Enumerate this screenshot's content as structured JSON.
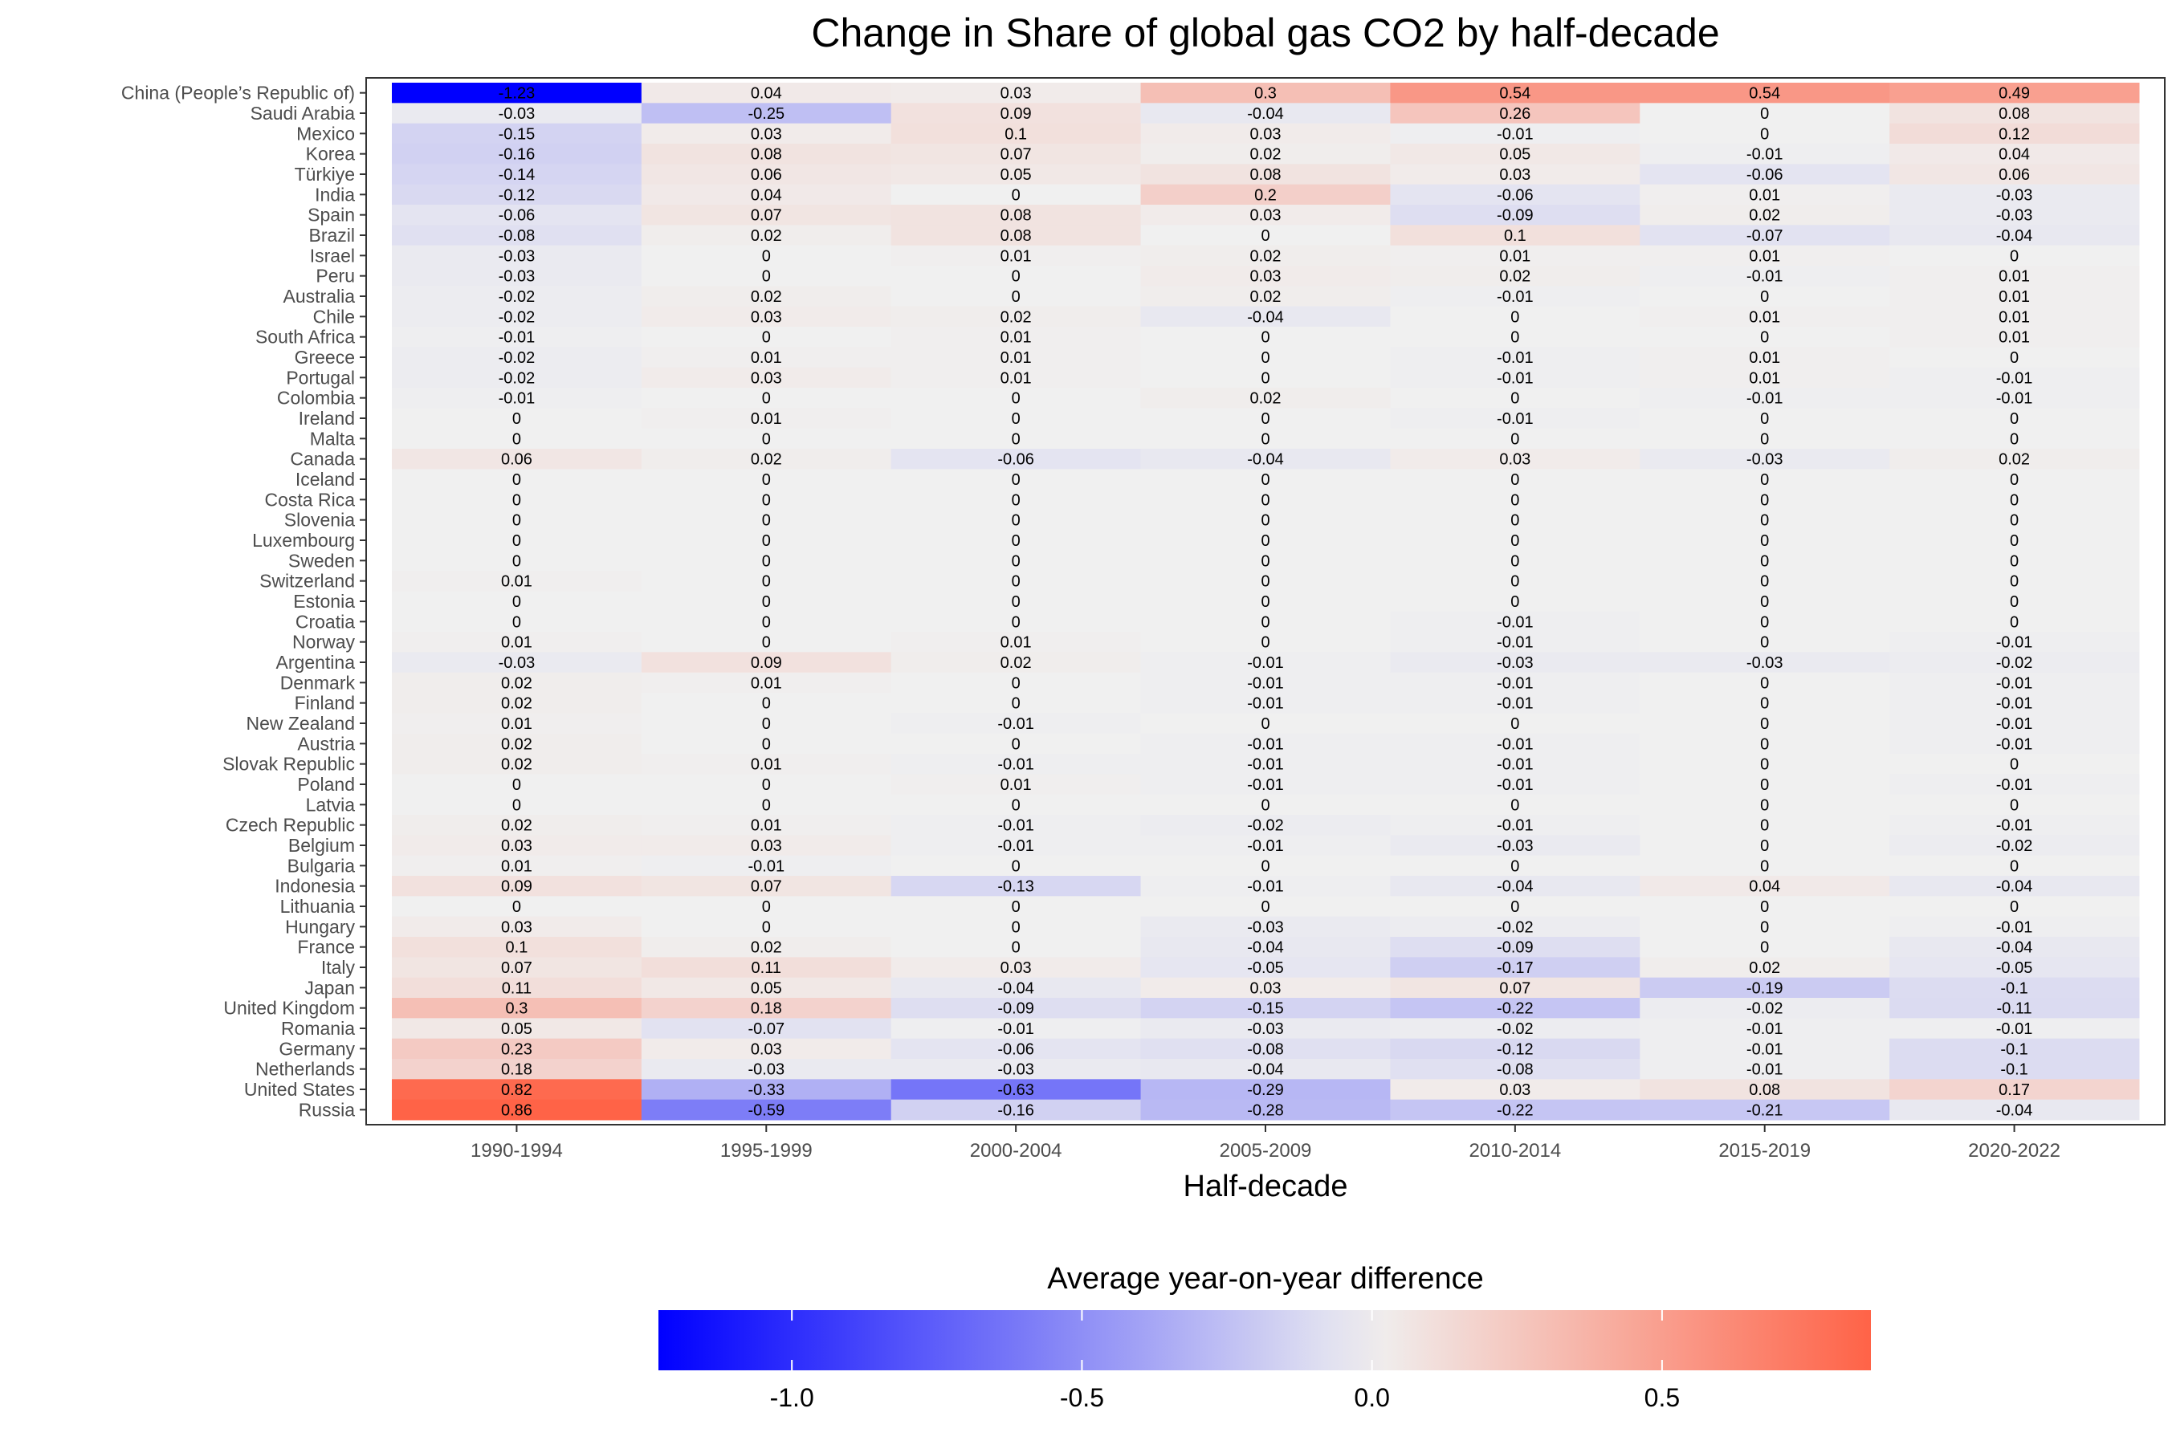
{
  "chart_data": {
    "type": "heatmap",
    "title": "Change in Share of global gas CO2 by half-decade",
    "xlabel": "Half-decade",
    "ylabel": "",
    "x_categories": [
      "1990-1994",
      "1995-1999",
      "2000-2004",
      "2005-2009",
      "2010-2014",
      "2015-2019",
      "2020-2022"
    ],
    "rows": [
      {
        "country": "China (People’s Republic of)",
        "values": [
          -1.23,
          0.04,
          0.03,
          0.3,
          0.54,
          0.54,
          0.49
        ]
      },
      {
        "country": "Saudi Arabia",
        "values": [
          -0.03,
          -0.25,
          0.09,
          -0.04,
          0.26,
          0,
          0.08
        ]
      },
      {
        "country": "Mexico",
        "values": [
          -0.15,
          0.03,
          0.1,
          0.03,
          -0.01,
          0,
          0.12
        ]
      },
      {
        "country": "Korea",
        "values": [
          -0.16,
          0.08,
          0.07,
          0.02,
          0.05,
          -0.01,
          0.04
        ]
      },
      {
        "country": "Türkiye",
        "values": [
          -0.14,
          0.06,
          0.05,
          0.08,
          0.03,
          -0.06,
          0.06
        ]
      },
      {
        "country": "India",
        "values": [
          -0.12,
          0.04,
          0,
          0.2,
          -0.06,
          0.01,
          -0.03
        ]
      },
      {
        "country": "Spain",
        "values": [
          -0.06,
          0.07,
          0.08,
          0.03,
          -0.09,
          0.02,
          -0.03
        ]
      },
      {
        "country": "Brazil",
        "values": [
          -0.08,
          0.02,
          0.08,
          0,
          0.1,
          -0.07,
          -0.04
        ]
      },
      {
        "country": "Israel",
        "values": [
          -0.03,
          0,
          0.01,
          0.02,
          0.01,
          0.01,
          0
        ]
      },
      {
        "country": "Peru",
        "values": [
          -0.03,
          0,
          0,
          0.03,
          0.02,
          -0.01,
          0.01
        ]
      },
      {
        "country": "Australia",
        "values": [
          -0.02,
          0.02,
          0,
          0.02,
          -0.01,
          0,
          0.01
        ]
      },
      {
        "country": "Chile",
        "values": [
          -0.02,
          0.03,
          0.02,
          -0.04,
          0,
          0.01,
          0.01
        ]
      },
      {
        "country": "South Africa",
        "values": [
          -0.01,
          0,
          0.01,
          0,
          0,
          0,
          0.01
        ]
      },
      {
        "country": "Greece",
        "values": [
          -0.02,
          0.01,
          0.01,
          0,
          -0.01,
          0.01,
          0
        ]
      },
      {
        "country": "Portugal",
        "values": [
          -0.02,
          0.03,
          0.01,
          0,
          -0.01,
          0.01,
          -0.01
        ]
      },
      {
        "country": "Colombia",
        "values": [
          -0.01,
          0,
          0,
          0.02,
          0,
          -0.01,
          -0.01
        ]
      },
      {
        "country": "Ireland",
        "values": [
          0,
          0.01,
          0,
          0,
          -0.01,
          0,
          0
        ]
      },
      {
        "country": "Malta",
        "values": [
          0,
          0,
          0,
          0,
          0,
          0,
          0
        ]
      },
      {
        "country": "Canada",
        "values": [
          0.06,
          0.02,
          -0.06,
          -0.04,
          0.03,
          -0.03,
          0.02
        ]
      },
      {
        "country": "Iceland",
        "values": [
          0,
          0,
          0,
          0,
          0,
          0,
          0
        ]
      },
      {
        "country": "Costa Rica",
        "values": [
          0,
          0,
          0,
          0,
          0,
          0,
          0
        ]
      },
      {
        "country": "Slovenia",
        "values": [
          0,
          0,
          0,
          0,
          0,
          0,
          0
        ]
      },
      {
        "country": "Luxembourg",
        "values": [
          0,
          0,
          0,
          0,
          0,
          0,
          0
        ]
      },
      {
        "country": "Sweden",
        "values": [
          0,
          0,
          0,
          0,
          0,
          0,
          0
        ]
      },
      {
        "country": "Switzerland",
        "values": [
          0.01,
          0,
          0,
          0,
          0,
          0,
          0
        ]
      },
      {
        "country": "Estonia",
        "values": [
          0,
          0,
          0,
          0,
          0,
          0,
          0
        ]
      },
      {
        "country": "Croatia",
        "values": [
          0,
          0,
          0,
          0,
          -0.01,
          0,
          0
        ]
      },
      {
        "country": "Norway",
        "values": [
          0.01,
          0,
          0.01,
          0,
          -0.01,
          0,
          -0.01
        ]
      },
      {
        "country": "Argentina",
        "values": [
          -0.03,
          0.09,
          0.02,
          -0.01,
          -0.03,
          -0.03,
          -0.02
        ]
      },
      {
        "country": "Denmark",
        "values": [
          0.02,
          0.01,
          0,
          -0.01,
          -0.01,
          0,
          -0.01
        ]
      },
      {
        "country": "Finland",
        "values": [
          0.02,
          0,
          0,
          -0.01,
          -0.01,
          0,
          -0.01
        ]
      },
      {
        "country": "New Zealand",
        "values": [
          0.01,
          0,
          -0.01,
          0,
          0,
          0,
          -0.01
        ]
      },
      {
        "country": "Austria",
        "values": [
          0.02,
          0,
          0,
          -0.01,
          -0.01,
          0,
          -0.01
        ]
      },
      {
        "country": "Slovak Republic",
        "values": [
          0.02,
          0.01,
          -0.01,
          -0.01,
          -0.01,
          0,
          0
        ]
      },
      {
        "country": "Poland",
        "values": [
          0,
          0,
          0.01,
          -0.01,
          -0.01,
          0,
          -0.01
        ]
      },
      {
        "country": "Latvia",
        "values": [
          0,
          0,
          0,
          0,
          0,
          0,
          0
        ]
      },
      {
        "country": "Czech Republic",
        "values": [
          0.02,
          0.01,
          -0.01,
          -0.02,
          -0.01,
          0,
          -0.01
        ]
      },
      {
        "country": "Belgium",
        "values": [
          0.03,
          0.03,
          -0.01,
          -0.01,
          -0.03,
          0,
          -0.02
        ]
      },
      {
        "country": "Bulgaria",
        "values": [
          0.01,
          -0.01,
          0,
          0,
          0,
          0,
          0
        ]
      },
      {
        "country": "Indonesia",
        "values": [
          0.09,
          0.07,
          -0.13,
          -0.01,
          -0.04,
          0.04,
          -0.04
        ]
      },
      {
        "country": "Lithuania",
        "values": [
          0,
          0,
          0,
          0,
          0,
          0,
          0
        ]
      },
      {
        "country": "Hungary",
        "values": [
          0.03,
          0,
          0,
          -0.03,
          -0.02,
          0,
          -0.01
        ]
      },
      {
        "country": "France",
        "values": [
          0.1,
          0.02,
          0,
          -0.04,
          -0.09,
          0,
          -0.04
        ]
      },
      {
        "country": "Italy",
        "values": [
          0.07,
          0.11,
          0.03,
          -0.05,
          -0.17,
          0.02,
          -0.05
        ]
      },
      {
        "country": "Japan",
        "values": [
          0.11,
          0.05,
          -0.04,
          0.03,
          0.07,
          -0.19,
          -0.1
        ]
      },
      {
        "country": "United Kingdom",
        "values": [
          0.3,
          0.18,
          -0.09,
          -0.15,
          -0.22,
          -0.02,
          -0.11
        ]
      },
      {
        "country": "Romania",
        "values": [
          0.05,
          -0.07,
          -0.01,
          -0.03,
          -0.02,
          -0.01,
          -0.01
        ]
      },
      {
        "country": "Germany",
        "values": [
          0.23,
          0.03,
          -0.06,
          -0.08,
          -0.12,
          -0.01,
          -0.1
        ]
      },
      {
        "country": "Netherlands",
        "values": [
          0.18,
          -0.03,
          -0.03,
          -0.04,
          -0.08,
          -0.01,
          -0.1
        ]
      },
      {
        "country": "United States",
        "values": [
          0.82,
          -0.33,
          -0.63,
          -0.29,
          0.03,
          0.08,
          0.17
        ]
      },
      {
        "country": "Russia",
        "values": [
          0.86,
          -0.59,
          -0.16,
          -0.28,
          -0.22,
          -0.21,
          -0.04
        ]
      }
    ],
    "legend": {
      "title": "Average year-on-year difference",
      "placement": "bottom",
      "range": [
        -1.23,
        0.86
      ],
      "ticks": [
        -1.0,
        -0.5,
        0.0,
        0.5
      ],
      "tick_labels": [
        "-1.0",
        "-0.5",
        "0.0",
        "0.5"
      ],
      "colors": {
        "low": "#0000ff",
        "mid": "#f0f0f0",
        "high": "#ff6347"
      }
    },
    "grid": false
  }
}
